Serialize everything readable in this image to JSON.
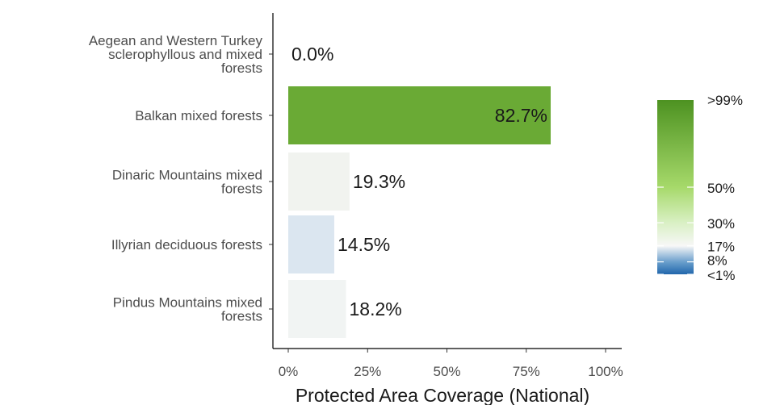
{
  "chart_data": {
    "type": "bar",
    "orientation": "horizontal",
    "categories": [
      "Aegean and Western Turkey sclerophyllous and mixed forests",
      "Balkan mixed forests",
      "Dinaric Mountains mixed forests",
      "Illyrian deciduous forests",
      "Pindus Mountains mixed forests"
    ],
    "category_label_lines": [
      [
        "Aegean and Western Turkey",
        "sclerophyllous and mixed",
        "forests"
      ],
      [
        "Balkan mixed forests"
      ],
      [
        "Dinaric Mountains mixed",
        "forests"
      ],
      [
        "Illyrian deciduous forests"
      ],
      [
        "Pindus Mountains mixed",
        "forests"
      ]
    ],
    "values": [
      0.0,
      82.7,
      19.3,
      14.5,
      18.2
    ],
    "value_labels": [
      "0.0%",
      "82.7%",
      "19.3%",
      "14.5%",
      "18.2%"
    ],
    "bar_colors": [
      "#f3f4f3",
      "#6aaa35",
      "#f1f3ef",
      "#dbe6f0",
      "#f1f4f3"
    ],
    "xlabel": "Protected Area Coverage (National)",
    "ylabel": "",
    "xlim": [
      0,
      100
    ],
    "x_ticks": [
      0,
      25,
      50,
      75,
      100
    ],
    "x_tick_labels": [
      "0%",
      "25%",
      "50%",
      "75%",
      "100%"
    ],
    "grid": false,
    "legend": {
      "placement": "right",
      "type": "colorbar",
      "labels": [
        ">99%",
        "50%",
        "30%",
        "17%",
        "8%",
        "<1%"
      ],
      "stops": [
        {
          "value": 1,
          "color": "#2166ac"
        },
        {
          "value": 8,
          "color": "#6a9fcc"
        },
        {
          "value": 17,
          "color": "#f7f7f7"
        },
        {
          "value": 30,
          "color": "#d9f0c4"
        },
        {
          "value": 50,
          "color": "#a6d96a"
        },
        {
          "value": 99,
          "color": "#4d9221"
        }
      ]
    }
  }
}
